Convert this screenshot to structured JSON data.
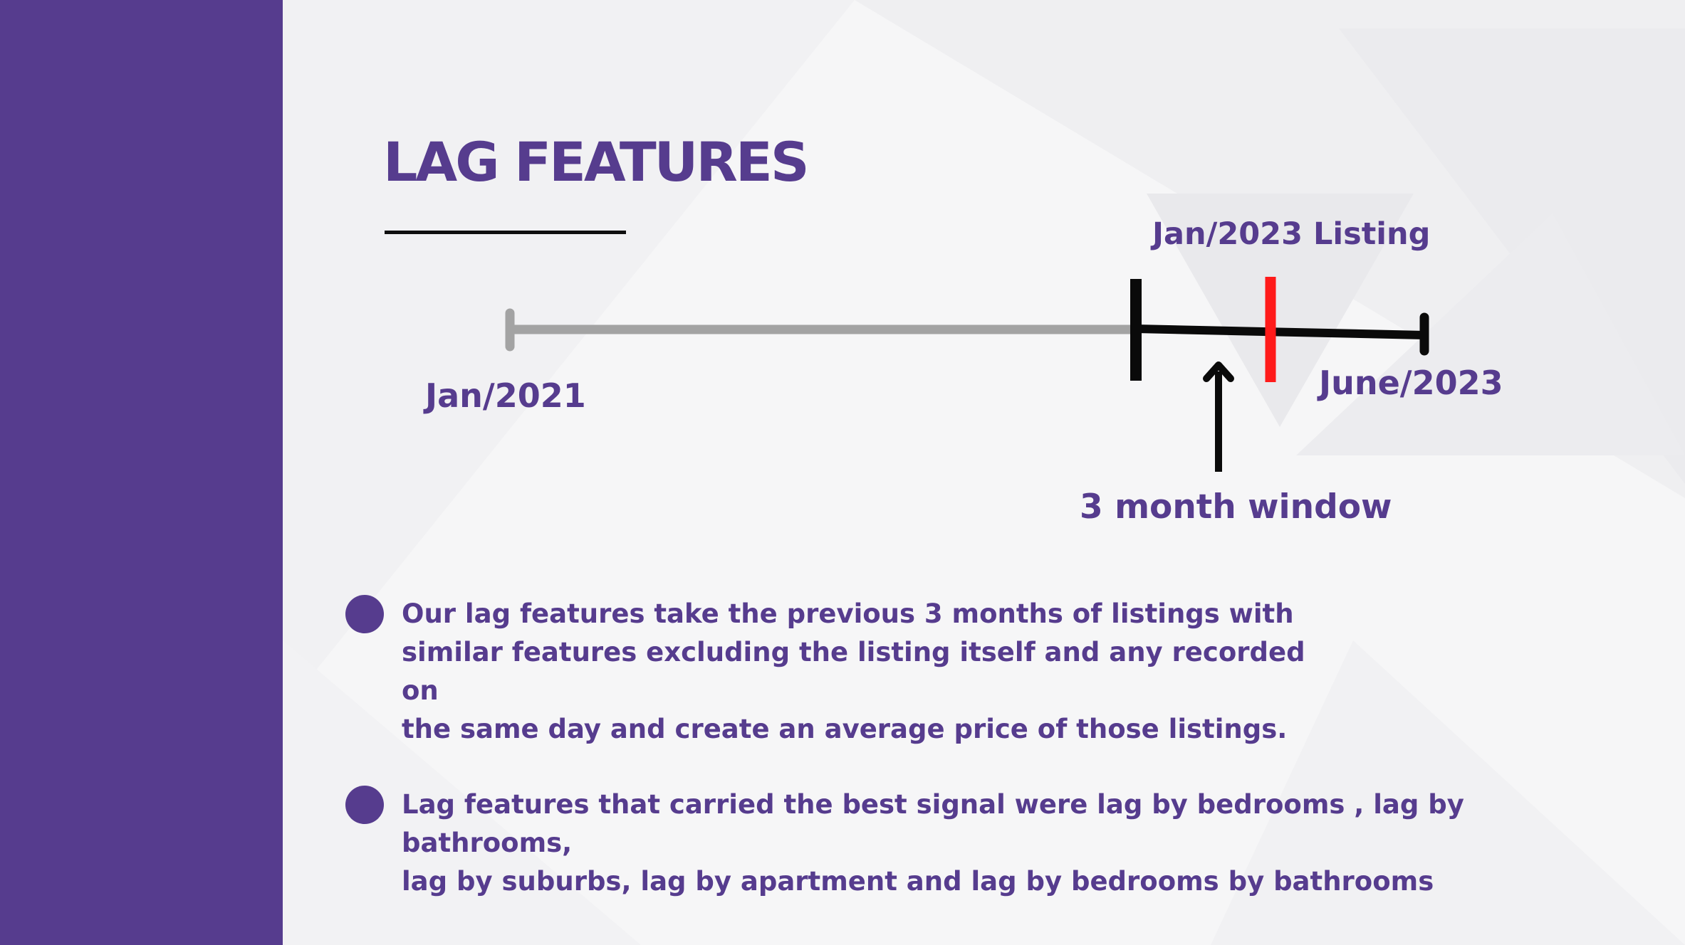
{
  "slide": {
    "title": "LAG FEATURES"
  },
  "timeline": {
    "start_label": "Jan/2021",
    "end_label": "June/2023",
    "listing_label": "Jan/2023 Listing",
    "window_label": "3 month window",
    "colors": {
      "history": "#a3a3a3",
      "window": "#0a0a0a",
      "listing_marker": "#ff1a1a"
    }
  },
  "bullets": [
    {
      "text": "Our lag features take the previous 3 months of listings with\nsimilar features excluding the listing itself and any recorded on\nthe same day and create an average price of those listings."
    },
    {
      "text": "Lag features that carried the best signal were lag by bedrooms , lag by bathrooms,\nlag  by suburbs, lag by apartment and lag by bedrooms by bathrooms"
    }
  ],
  "colors": {
    "accent": "#563c8e",
    "background": "#f6f6f7"
  }
}
